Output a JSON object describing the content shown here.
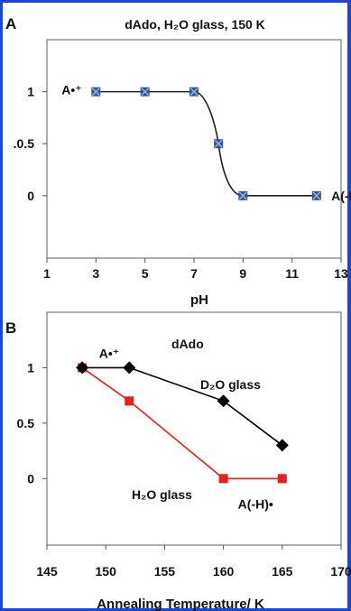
{
  "chart_data": [
    {
      "panel": "A",
      "type": "line",
      "title": "dAdo, H₂O glass, 150 K",
      "xlabel": "pH",
      "ylabel": "",
      "xlim": [
        1,
        13
      ],
      "ylim": [
        -0.6,
        1.5
      ],
      "x_ticks": [
        "1",
        "3",
        "5",
        "7",
        "9",
        "11",
        "13"
      ],
      "y_ticks": [
        "1",
        ".0.5",
        "0"
      ],
      "y_tick_values": [
        1,
        0.5,
        0
      ],
      "series": [
        {
          "x": [
            3,
            5,
            7,
            8,
            9,
            12
          ],
          "y": [
            1,
            1,
            1,
            0.5,
            0,
            0
          ],
          "marker": "square-x",
          "color": "#2f5597",
          "line": "#222222"
        }
      ],
      "annotations": [
        {
          "text": "A•⁺",
          "x": 1.6,
          "y": 1.02
        },
        {
          "text": "A(-H)",
          "x": 12.6,
          "y": 0
        }
      ],
      "grid": false,
      "legend": "none"
    },
    {
      "panel": "B",
      "type": "line",
      "title": "dAdo",
      "xlabel": "Annealing Temperature/ K",
      "ylabel": "",
      "xlim": [
        145,
        170
      ],
      "ylim": [
        -0.6,
        1.5
      ],
      "x_ticks": [
        "145",
        "150",
        "155",
        "160",
        "165",
        "170"
      ],
      "y_ticks": [
        "1",
        "0.5",
        "0"
      ],
      "y_tick_values": [
        1,
        0.5,
        0
      ],
      "series": [
        {
          "name": "D₂O glass",
          "x": [
            148,
            152,
            160,
            165
          ],
          "y": [
            1,
            1,
            0.7,
            0.3
          ],
          "marker": "diamond",
          "color": "#000000"
        },
        {
          "name": "H₂O glass",
          "x": [
            148,
            152,
            160,
            165
          ],
          "y": [
            1,
            0.7,
            0,
            0
          ],
          "marker": "square",
          "color": "#e8201a"
        }
      ],
      "annotations": [
        {
          "text": "A•⁺",
          "x": 150.2,
          "y": 1.13
        },
        {
          "text": "A(-H)•",
          "x": 162.0,
          "y": -0.23
        }
      ],
      "grid": false,
      "legend": "inline labels"
    }
  ],
  "panels": {
    "a_label": "A",
    "b_label": "B"
  }
}
